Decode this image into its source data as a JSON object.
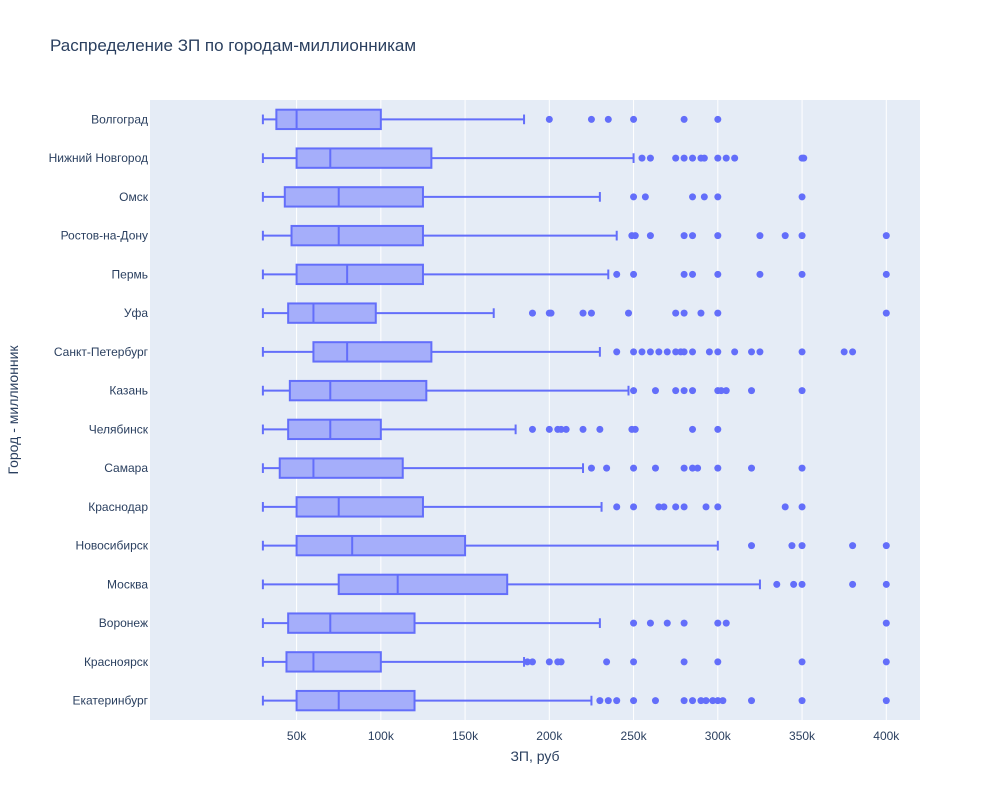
{
  "chart_data": {
    "type": "box",
    "orientation": "horizontal",
    "title": "Распределение ЗП по городам-миллионникам",
    "xlabel": "ЗП, руб",
    "ylabel": "Город - миллионник",
    "xlim": [
      0,
      420000
    ],
    "x_ticks": [
      {
        "value": 50000,
        "label": "50k"
      },
      {
        "value": 100000,
        "label": "100k"
      },
      {
        "value": 150000,
        "label": "150k"
      },
      {
        "value": 200000,
        "label": "200k"
      },
      {
        "value": 250000,
        "label": "250k"
      },
      {
        "value": 300000,
        "label": "300k"
      },
      {
        "value": 350000,
        "label": "350k"
      },
      {
        "value": 400000,
        "label": "400k"
      }
    ],
    "grid": true,
    "colors": {
      "box_fill": "#a5aefa",
      "box_line": "#636efa",
      "plot_bg": "#e5ecf6",
      "grid": "#ffffff",
      "text": "#2a3f5f"
    },
    "categories": [
      "Волгоград",
      "Нижний Новгород",
      "Омск",
      "Ростов-на-Дону",
      "Пермь",
      "Уфа",
      "Санкт-Петербург",
      "Казань",
      "Челябинск",
      "Самара",
      "Краснодар",
      "Новосибирск",
      "Москва",
      "Воронеж",
      "Красноярск",
      "Екатеринбург"
    ],
    "boxes": [
      {
        "category": "Волгоград",
        "min": 30000,
        "q1": 38000,
        "median": 50000,
        "q3": 100000,
        "max": 185000,
        "outliers": [
          200000,
          225000,
          235000,
          250000,
          280000,
          300000
        ]
      },
      {
        "category": "Нижний Новгород",
        "min": 30000,
        "q1": 50000,
        "median": 70000,
        "q3": 130000,
        "max": 250000,
        "outliers": [
          255000,
          260000,
          275000,
          280000,
          285000,
          290000,
          292000,
          300000,
          305000,
          310000,
          350000,
          351000
        ]
      },
      {
        "category": "Омск",
        "min": 30000,
        "q1": 43000,
        "median": 75000,
        "q3": 125000,
        "max": 230000,
        "outliers": [
          250000,
          257000,
          285000,
          292000,
          300000,
          350000
        ]
      },
      {
        "category": "Ростов-на-Дону",
        "min": 30000,
        "q1": 47000,
        "median": 75000,
        "q3": 125000,
        "max": 240000,
        "outliers": [
          249000,
          251000,
          260000,
          280000,
          285000,
          300000,
          325000,
          340000,
          350000,
          400000
        ]
      },
      {
        "category": "Пермь",
        "min": 30000,
        "q1": 50000,
        "median": 80000,
        "q3": 125000,
        "max": 235000,
        "outliers": [
          240000,
          250000,
          280000,
          285000,
          300000,
          325000,
          350000,
          400000
        ]
      },
      {
        "category": "Уфа",
        "min": 30000,
        "q1": 45000,
        "median": 60000,
        "q3": 97000,
        "max": 167000,
        "outliers": [
          190000,
          200000,
          201000,
          220000,
          225000,
          247000,
          275000,
          280000,
          290000,
          300000,
          400000
        ]
      },
      {
        "category": "Санкт-Петербург",
        "min": 30000,
        "q1": 60000,
        "median": 80000,
        "q3": 130000,
        "max": 230000,
        "outliers": [
          240000,
          250000,
          255000,
          260000,
          265000,
          270000,
          275000,
          278000,
          280000,
          285000,
          295000,
          300000,
          310000,
          320000,
          325000,
          350000,
          375000,
          380000
        ]
      },
      {
        "category": "Казань",
        "min": 30000,
        "q1": 46000,
        "median": 70000,
        "q3": 127000,
        "max": 247000,
        "outliers": [
          250000,
          263000,
          275000,
          280000,
          285000,
          300000,
          302000,
          305000,
          320000,
          350000
        ]
      },
      {
        "category": "Челябинск",
        "min": 30000,
        "q1": 45000,
        "median": 70000,
        "q3": 100000,
        "max": 180000,
        "outliers": [
          190000,
          200000,
          205000,
          207000,
          210000,
          220000,
          230000,
          249000,
          251000,
          285000,
          300000
        ]
      },
      {
        "category": "Самара",
        "min": 30000,
        "q1": 40000,
        "median": 60000,
        "q3": 113000,
        "max": 220000,
        "outliers": [
          225000,
          234000,
          250000,
          263000,
          280000,
          285000,
          288000,
          300000,
          320000,
          350000
        ]
      },
      {
        "category": "Краснодар",
        "min": 30000,
        "q1": 50000,
        "median": 75000,
        "q3": 125000,
        "max": 231000,
        "outliers": [
          240000,
          250000,
          265000,
          268000,
          275000,
          280000,
          293000,
          300000,
          340000,
          350000
        ]
      },
      {
        "category": "Новосибирск",
        "min": 30000,
        "q1": 50000,
        "median": 83000,
        "q3": 150000,
        "max": 300000,
        "outliers": [
          320000,
          344000,
          350000,
          380000,
          400000
        ]
      },
      {
        "category": "Москва",
        "min": 30000,
        "q1": 75000,
        "median": 110000,
        "q3": 175000,
        "max": 325000,
        "outliers": [
          335000,
          345000,
          350000,
          380000,
          400000
        ]
      },
      {
        "category": "Воронеж",
        "min": 30000,
        "q1": 45000,
        "median": 70000,
        "q3": 120000,
        "max": 230000,
        "outliers": [
          250000,
          260000,
          270000,
          280000,
          300000,
          305000,
          400000
        ]
      },
      {
        "category": "Красноярск",
        "min": 30000,
        "q1": 44000,
        "median": 60000,
        "q3": 100000,
        "max": 185000,
        "outliers": [
          187000,
          190000,
          200000,
          205000,
          207000,
          234000,
          250000,
          280000,
          300000,
          350000,
          400000
        ]
      },
      {
        "category": "Екатеринбург",
        "min": 30000,
        "q1": 50000,
        "median": 75000,
        "q3": 120000,
        "max": 225000,
        "outliers": [
          230000,
          235000,
          240000,
          250000,
          263000,
          280000,
          285000,
          290000,
          293000,
          297000,
          300000,
          303000,
          320000,
          350000,
          400000
        ]
      }
    ]
  }
}
